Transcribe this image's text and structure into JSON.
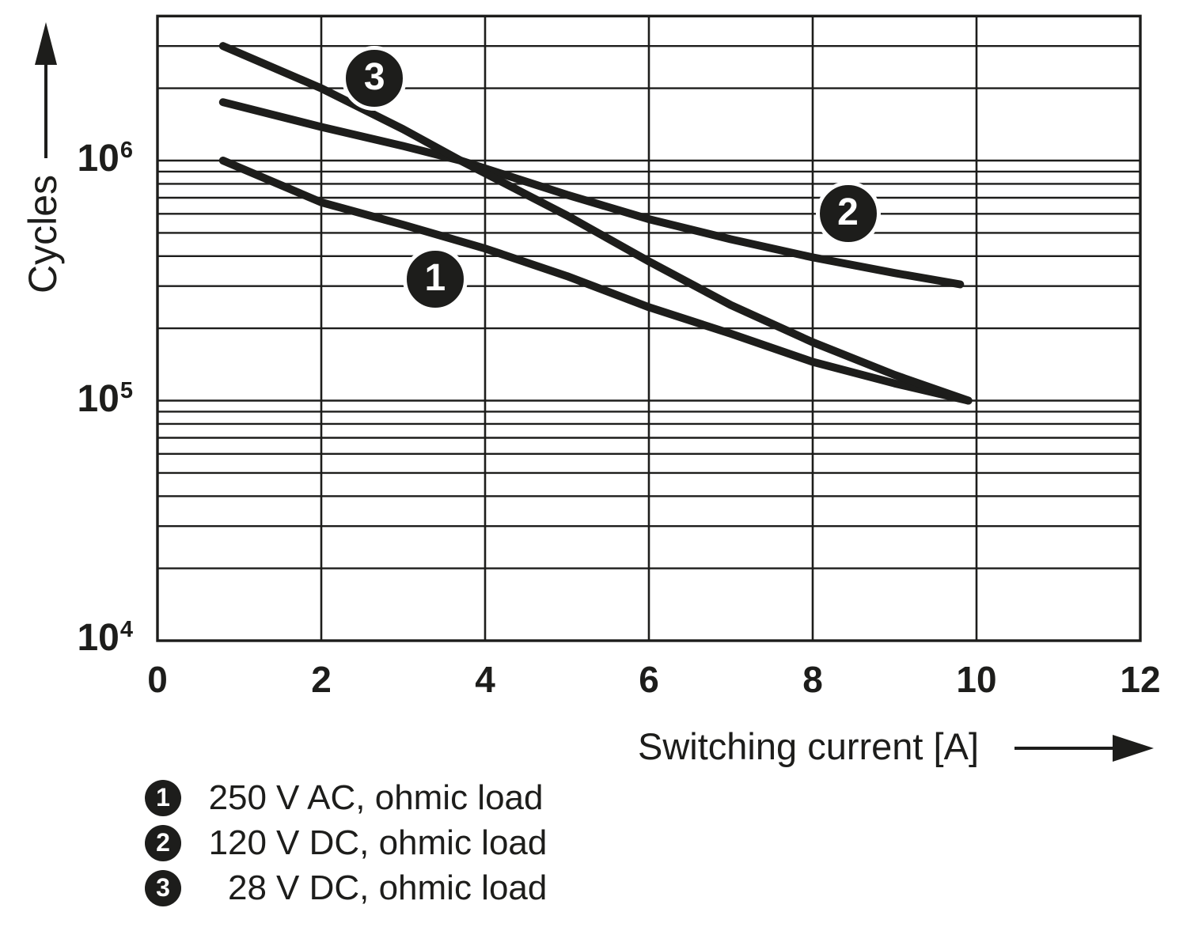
{
  "colors": {
    "ink": "#1d1d1b",
    "background": "#ffffff"
  },
  "y_axis": {
    "label": "Cycles",
    "ticks": [
      {
        "base": "10",
        "exp": "6"
      },
      {
        "base": "10",
        "exp": "5"
      },
      {
        "base": "10",
        "exp": "4"
      }
    ]
  },
  "x_axis": {
    "label": "Switching current [A]",
    "ticks": [
      "0",
      "2",
      "4",
      "6",
      "8",
      "10",
      "12"
    ]
  },
  "legend": {
    "items": [
      {
        "marker": "1",
        "num": "250",
        "rest": "V AC, ohmic load"
      },
      {
        "marker": "2",
        "num": "120",
        "rest": "V DC, ohmic load"
      },
      {
        "marker": "3",
        "num": "28",
        "rest": "V DC, ohmic load"
      }
    ]
  },
  "chart_data": {
    "type": "line",
    "title": "",
    "xlabel": "Switching current [A]",
    "ylabel": "Cycles",
    "x_scale": "linear",
    "y_scale": "log",
    "xlim": [
      0,
      12
    ],
    "ylim": [
      10000,
      4000000
    ],
    "grid": true,
    "x_gridlines": [
      2,
      4,
      6,
      8,
      10
    ],
    "y_gridlines": [
      20000,
      30000,
      40000,
      50000,
      60000,
      70000,
      80000,
      90000,
      100000,
      200000,
      300000,
      400000,
      500000,
      600000,
      700000,
      800000,
      900000,
      1000000,
      2000000,
      3000000
    ],
    "series": [
      {
        "name": "250 V AC, ohmic load",
        "marker": "1",
        "points": [
          [
            0.8,
            1000000
          ],
          [
            2,
            670000
          ],
          [
            3,
            540000
          ],
          [
            4,
            430000
          ],
          [
            5,
            330000
          ],
          [
            6,
            245000
          ],
          [
            7,
            190000
          ],
          [
            8,
            145000
          ],
          [
            9,
            118000
          ],
          [
            9.9,
            100000
          ]
        ]
      },
      {
        "name": "120 V DC, ohmic load",
        "marker": "2",
        "points": [
          [
            0.8,
            1750000
          ],
          [
            2,
            1380000
          ],
          [
            3,
            1150000
          ],
          [
            3.7,
            1000000
          ],
          [
            5,
            720000
          ],
          [
            6,
            570000
          ],
          [
            7,
            470000
          ],
          [
            8,
            395000
          ],
          [
            9,
            340000
          ],
          [
            9.8,
            305000
          ]
        ]
      },
      {
        "name": "28 V DC, ohmic load",
        "marker": "3",
        "points": [
          [
            0.8,
            3000000
          ],
          [
            2,
            2000000
          ],
          [
            3,
            1350000
          ],
          [
            3.7,
            1000000
          ],
          [
            5,
            590000
          ],
          [
            6,
            380000
          ],
          [
            7,
            250000
          ],
          [
            8,
            175000
          ],
          [
            9,
            128000
          ],
          [
            9.9,
            100000
          ]
        ]
      }
    ],
    "annotations": [
      {
        "label": "1",
        "x": 3.39,
        "y": 320000
      },
      {
        "label": "2",
        "x": 8.43,
        "y": 600000
      },
      {
        "label": "3",
        "x": 2.65,
        "y": 2200000
      }
    ]
  }
}
